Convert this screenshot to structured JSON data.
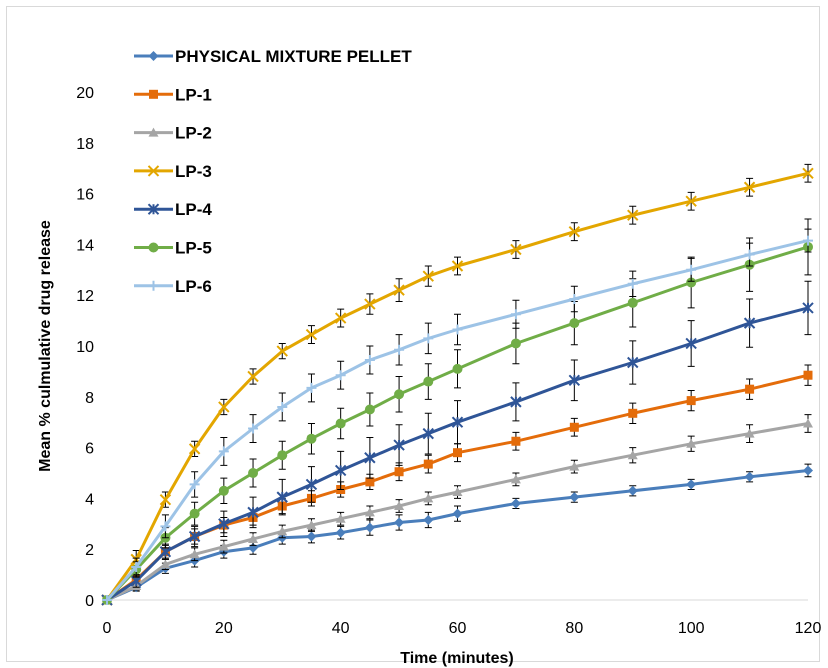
{
  "chart_data": {
    "type": "line",
    "title": "",
    "xlabel": "Time (minutes)",
    "ylabel": "Mean % culmulative drug release",
    "xlim": [
      0,
      120
    ],
    "ylim": [
      0,
      20
    ],
    "xticks": [
      "0",
      "20",
      "40",
      "60",
      "80",
      "100",
      "120"
    ],
    "yticks": [
      "0",
      "2",
      "4",
      "6",
      "8",
      "10",
      "12",
      "14",
      "16",
      "18",
      "20"
    ],
    "grid": false,
    "legend_position": "top-left",
    "x": [
      0,
      5,
      10,
      15,
      20,
      25,
      30,
      35,
      40,
      45,
      50,
      55,
      60,
      70,
      80,
      90,
      100,
      110,
      120
    ],
    "series": [
      {
        "name": "PHYSICAL MIXTURE PELLET",
        "color": "#4A7EBB",
        "marker": "diamond",
        "values": [
          0,
          0.5,
          1.25,
          1.55,
          1.9,
          2.05,
          2.45,
          2.5,
          2.65,
          2.85,
          3.05,
          3.15,
          3.4,
          3.8,
          4.05,
          4.3,
          4.55,
          4.85,
          5.1
        ],
        "errors": [
          0,
          0.15,
          0.2,
          0.25,
          0.25,
          0.25,
          0.25,
          0.25,
          0.25,
          0.3,
          0.3,
          0.3,
          0.3,
          0.2,
          0.2,
          0.2,
          0.2,
          0.2,
          0.25
        ]
      },
      {
        "name": "LP-1",
        "color": "#E46C0A",
        "marker": "square",
        "values": [
          0,
          0.8,
          1.9,
          2.5,
          2.95,
          3.25,
          3.7,
          4.0,
          4.35,
          4.65,
          5.05,
          5.35,
          5.8,
          6.25,
          6.8,
          7.35,
          7.85,
          8.3,
          8.85
        ],
        "errors": [
          0,
          0.2,
          0.25,
          0.3,
          0.3,
          0.3,
          0.3,
          0.3,
          0.3,
          0.3,
          0.35,
          0.35,
          0.35,
          0.35,
          0.35,
          0.4,
          0.4,
          0.4,
          0.4
        ]
      },
      {
        "name": "LP-2",
        "color": "#A5A5A5",
        "marker": "triangle",
        "values": [
          0,
          0.55,
          1.4,
          1.8,
          2.1,
          2.4,
          2.7,
          2.95,
          3.2,
          3.45,
          3.7,
          4.0,
          4.25,
          4.75,
          5.25,
          5.7,
          6.15,
          6.55,
          6.95
        ],
        "errors": [
          0,
          0.15,
          0.2,
          0.25,
          0.25,
          0.25,
          0.25,
          0.25,
          0.25,
          0.25,
          0.25,
          0.25,
          0.25,
          0.25,
          0.25,
          0.3,
          0.3,
          0.35,
          0.35
        ]
      },
      {
        "name": "LP-3",
        "color": "#E3A600",
        "marker": "x",
        "values": [
          0,
          1.6,
          3.95,
          5.95,
          7.6,
          8.8,
          9.8,
          10.45,
          11.1,
          11.65,
          12.2,
          12.75,
          13.15,
          13.8,
          14.5,
          15.15,
          15.7,
          16.25,
          16.8
        ],
        "errors": [
          0,
          0.35,
          0.3,
          0.3,
          0.3,
          0.3,
          0.3,
          0.35,
          0.35,
          0.4,
          0.45,
          0.4,
          0.35,
          0.35,
          0.35,
          0.35,
          0.35,
          0.35,
          0.35
        ]
      },
      {
        "name": "LP-4",
        "color": "#2F5597",
        "marker": "star",
        "values": [
          0,
          0.75,
          1.9,
          2.5,
          3.0,
          3.45,
          4.05,
          4.55,
          5.1,
          5.6,
          6.1,
          6.55,
          7.0,
          7.8,
          8.65,
          9.35,
          10.1,
          10.9,
          11.5
        ],
        "errors": [
          0,
          0.25,
          0.3,
          0.4,
          0.5,
          0.6,
          0.7,
          0.7,
          0.75,
          0.8,
          0.8,
          0.8,
          0.85,
          0.75,
          0.8,
          0.85,
          0.9,
          0.95,
          1.05
        ]
      },
      {
        "name": "LP-5",
        "color": "#70AD47",
        "marker": "circle",
        "values": [
          0,
          1.2,
          2.45,
          3.4,
          4.3,
          5.0,
          5.7,
          6.35,
          6.95,
          7.5,
          8.1,
          8.6,
          9.1,
          10.1,
          10.9,
          11.7,
          12.5,
          13.2,
          13.9
        ],
        "errors": [
          0,
          0.3,
          0.4,
          0.45,
          0.5,
          0.55,
          0.55,
          0.6,
          0.6,
          0.65,
          0.7,
          0.7,
          0.75,
          0.8,
          0.85,
          0.95,
          1.0,
          1.05,
          1.1
        ]
      },
      {
        "name": "LP-6",
        "color": "#9DC3E6",
        "marker": "plus",
        "values": [
          0,
          1.3,
          2.9,
          4.55,
          5.85,
          6.75,
          7.6,
          8.35,
          8.85,
          9.45,
          9.85,
          10.3,
          10.65,
          11.25,
          11.85,
          12.45,
          13.0,
          13.6,
          14.15
        ],
        "errors": [
          0,
          0.35,
          0.45,
          0.5,
          0.55,
          0.55,
          0.55,
          0.55,
          0.55,
          0.55,
          0.6,
          0.6,
          0.6,
          0.55,
          0.5,
          0.5,
          0.45,
          0.45,
          0.45
        ]
      }
    ]
  }
}
